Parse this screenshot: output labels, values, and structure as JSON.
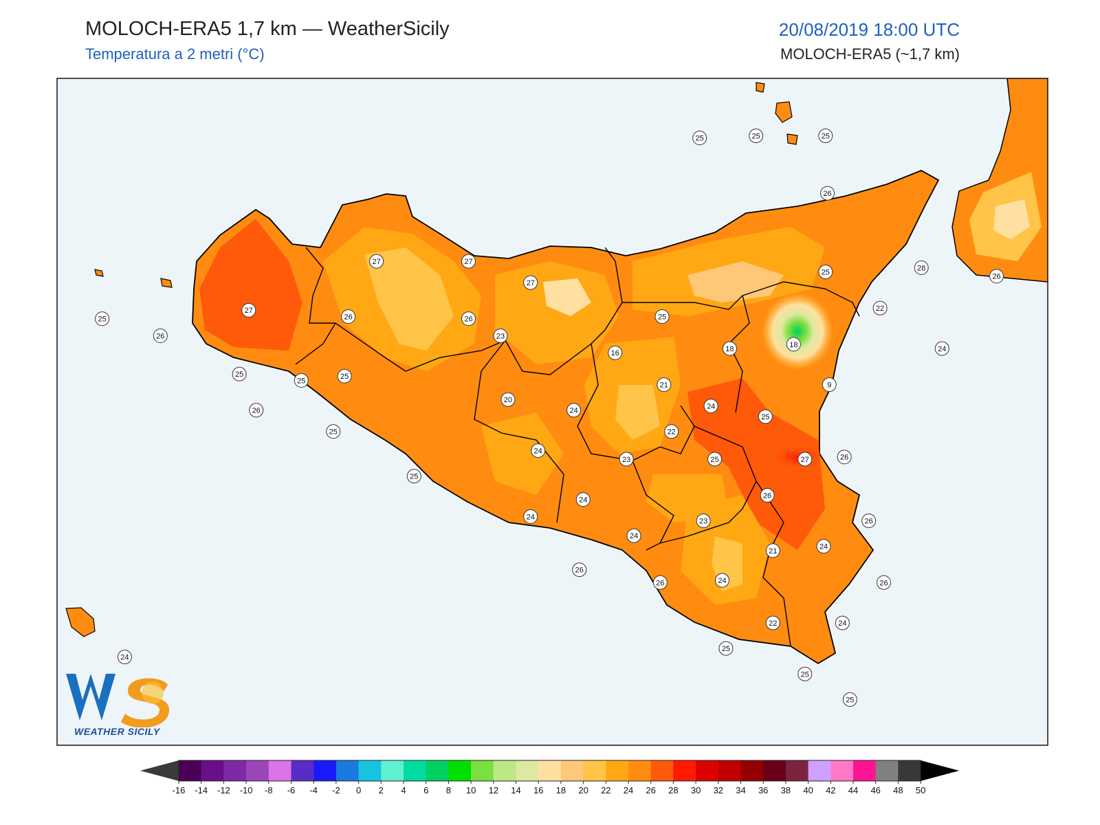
{
  "header": {
    "title": "MOLOCH-ERA5 1,7 km — WeatherSicily",
    "subtitle": "Temperatura a 2 metri (°C)",
    "datetime": "20/08/2019 18:00 UTC",
    "model": "MOLOCH-ERA5 (~1,7 km)"
  },
  "logo": {
    "text": "WEATHER SICILY",
    "mark": "WS"
  },
  "colors": {
    "sea": "#eef5f9",
    "frame": "#222222"
  },
  "colorbar": {
    "ticks": [
      "-16",
      "-14",
      "-12",
      "-10",
      "-8",
      "-6",
      "-4",
      "-2",
      "0",
      "2",
      "4",
      "6",
      "8",
      "10",
      "12",
      "14",
      "16",
      "18",
      "20",
      "22",
      "24",
      "26",
      "28",
      "30",
      "32",
      "34",
      "36",
      "38",
      "40",
      "42",
      "44",
      "46",
      "48",
      "50"
    ],
    "colors": [
      "#4b0055",
      "#6a0f8a",
      "#7e2aa6",
      "#9c46b8",
      "#dc73e6",
      "#5a2cc6",
      "#1a1aff",
      "#1a7ae0",
      "#16c4e0",
      "#5ff0d0",
      "#00dca0",
      "#00d060",
      "#00e000",
      "#7ae040",
      "#bde886",
      "#dde8a0",
      "#ffe0a0",
      "#ffc878",
      "#ffc448",
      "#ffa814",
      "#ff8c10",
      "#ff5a0a",
      "#ff1a00",
      "#dc0000",
      "#c00000",
      "#960000",
      "#6a0018",
      "#7a2440",
      "#d0a0ff",
      "#ff78c8",
      "#ff1494",
      "#808080",
      "#383838"
    ]
  },
  "stations": [
    {
      "label": "25",
      "lon": 12.42,
      "lat": 38.92
    },
    {
      "label": "25",
      "lon": 12.72,
      "lat": 38.93
    },
    {
      "label": "25",
      "lon": 13.09,
      "lat": 38.93
    },
    {
      "label": "26",
      "lon": 13.1,
      "lat": 38.66
    },
    {
      "label": "27",
      "lon": 10.7,
      "lat": 38.34
    },
    {
      "label": "27",
      "lon": 11.19,
      "lat": 38.34
    },
    {
      "label": "27",
      "lon": 11.52,
      "lat": 38.24
    },
    {
      "label": "28",
      "lon": 13.6,
      "lat": 38.31
    },
    {
      "label": "25",
      "lon": 13.09,
      "lat": 38.29
    },
    {
      "label": "26",
      "lon": 14.0,
      "lat": 38.27
    },
    {
      "label": "25",
      "lon": 9.24,
      "lat": 38.07
    },
    {
      "label": "26",
      "lon": 9.55,
      "lat": 37.99
    },
    {
      "label": "27",
      "lon": 10.02,
      "lat": 38.11
    },
    {
      "label": "26",
      "lon": 10.55,
      "lat": 38.08
    },
    {
      "label": "26",
      "lon": 11.19,
      "lat": 38.07
    },
    {
      "label": "23",
      "lon": 11.36,
      "lat": 37.99
    },
    {
      "label": "25",
      "lon": 12.22,
      "lat": 38.08
    },
    {
      "label": "22",
      "lon": 13.38,
      "lat": 38.12
    },
    {
      "label": "16",
      "lon": 11.97,
      "lat": 37.91
    },
    {
      "label": "18",
      "lon": 12.58,
      "lat": 37.93
    },
    {
      "label": "18",
      "lon": 12.92,
      "lat": 37.95
    },
    {
      "label": "24",
      "lon": 13.71,
      "lat": 37.93
    },
    {
      "label": "25",
      "lon": 9.97,
      "lat": 37.81
    },
    {
      "label": "25",
      "lon": 10.3,
      "lat": 37.78
    },
    {
      "label": "25",
      "lon": 10.53,
      "lat": 37.8
    },
    {
      "label": "21",
      "lon": 12.23,
      "lat": 37.76
    },
    {
      "label": "9",
      "lon": 13.11,
      "lat": 37.76
    },
    {
      "label": "20",
      "lon": 11.4,
      "lat": 37.69
    },
    {
      "label": "24",
      "lon": 11.75,
      "lat": 37.64
    },
    {
      "label": "24",
      "lon": 12.48,
      "lat": 37.66
    },
    {
      "label": "25",
      "lon": 12.77,
      "lat": 37.61
    },
    {
      "label": "26",
      "lon": 10.06,
      "lat": 37.64
    },
    {
      "label": "25",
      "lon": 10.47,
      "lat": 37.54
    },
    {
      "label": "22",
      "lon": 12.27,
      "lat": 37.54
    },
    {
      "label": "24",
      "lon": 11.56,
      "lat": 37.45
    },
    {
      "label": "23",
      "lon": 12.03,
      "lat": 37.41
    },
    {
      "label": "25",
      "lon": 12.5,
      "lat": 37.41
    },
    {
      "label": "27",
      "lon": 12.98,
      "lat": 37.41
    },
    {
      "label": "26",
      "lon": 13.19,
      "lat": 37.42
    },
    {
      "label": "25",
      "lon": 10.9,
      "lat": 37.33
    },
    {
      "label": "26",
      "lon": 12.78,
      "lat": 37.24
    },
    {
      "label": "24",
      "lon": 11.52,
      "lat": 37.14
    },
    {
      "label": "24",
      "lon": 11.8,
      "lat": 37.22
    },
    {
      "label": "23",
      "lon": 12.44,
      "lat": 37.12
    },
    {
      "label": "26",
      "lon": 13.32,
      "lat": 37.12
    },
    {
      "label": "24",
      "lon": 12.07,
      "lat": 37.05
    },
    {
      "label": "24",
      "lon": 13.08,
      "lat": 37.0
    },
    {
      "label": "21",
      "lon": 12.81,
      "lat": 36.98
    },
    {
      "label": "26",
      "lon": 11.78,
      "lat": 36.89
    },
    {
      "label": "26",
      "lon": 12.21,
      "lat": 36.83
    },
    {
      "label": "24",
      "lon": 12.54,
      "lat": 36.84
    },
    {
      "label": "26",
      "lon": 13.4,
      "lat": 36.83
    },
    {
      "label": "22",
      "lon": 12.81,
      "lat": 36.64
    },
    {
      "label": "24",
      "lon": 13.18,
      "lat": 36.64
    },
    {
      "label": "25",
      "lon": 12.56,
      "lat": 36.52
    },
    {
      "label": "25",
      "lon": 12.98,
      "lat": 36.4
    },
    {
      "label": "25",
      "lon": 13.22,
      "lat": 36.28
    },
    {
      "label": "24",
      "lon": 9.36,
      "lat": 36.48
    }
  ]
}
